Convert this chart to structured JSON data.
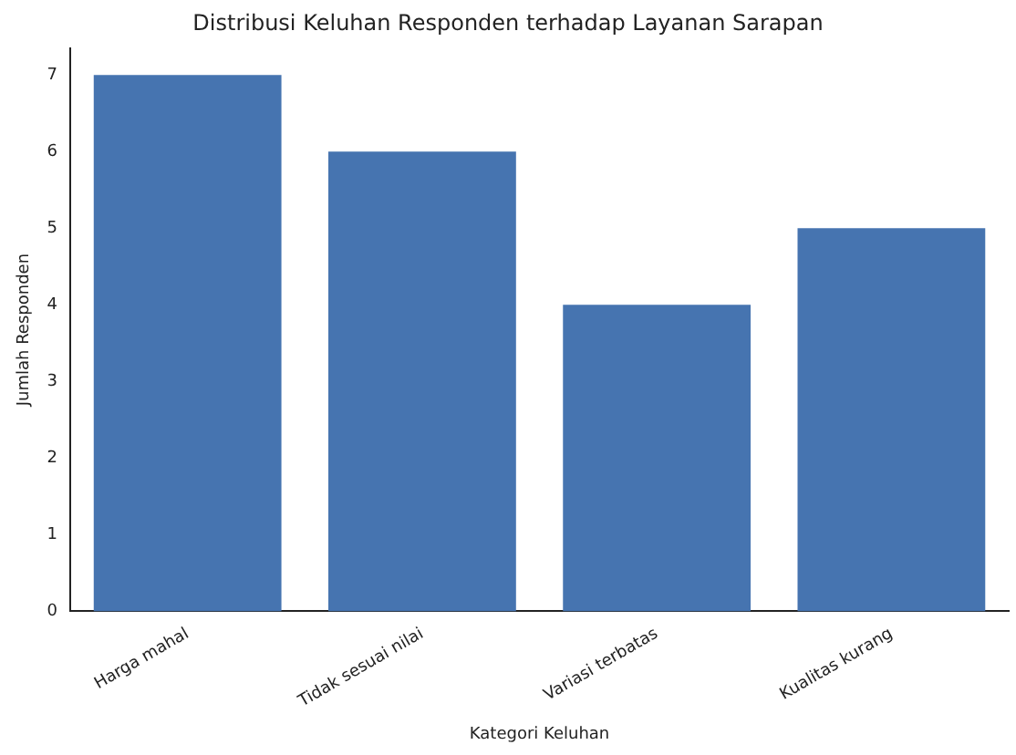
{
  "chart_data": {
    "type": "bar",
    "title": "Distribusi Keluhan Responden terhadap Layanan Sarapan",
    "xlabel": "Kategori Keluhan",
    "ylabel": "Jumlah Responden",
    "categories": [
      "Harga mahal",
      "Tidak sesuai nilai",
      "Variasi terbatas",
      "Kualitas kurang"
    ],
    "values": [
      7,
      6,
      4,
      5
    ],
    "color": "#4674b0",
    "ylim": [
      0,
      7.35
    ],
    "yticks": [
      0,
      1,
      2,
      3,
      4,
      5,
      6,
      7
    ],
    "grid": false,
    "legend": false
  }
}
